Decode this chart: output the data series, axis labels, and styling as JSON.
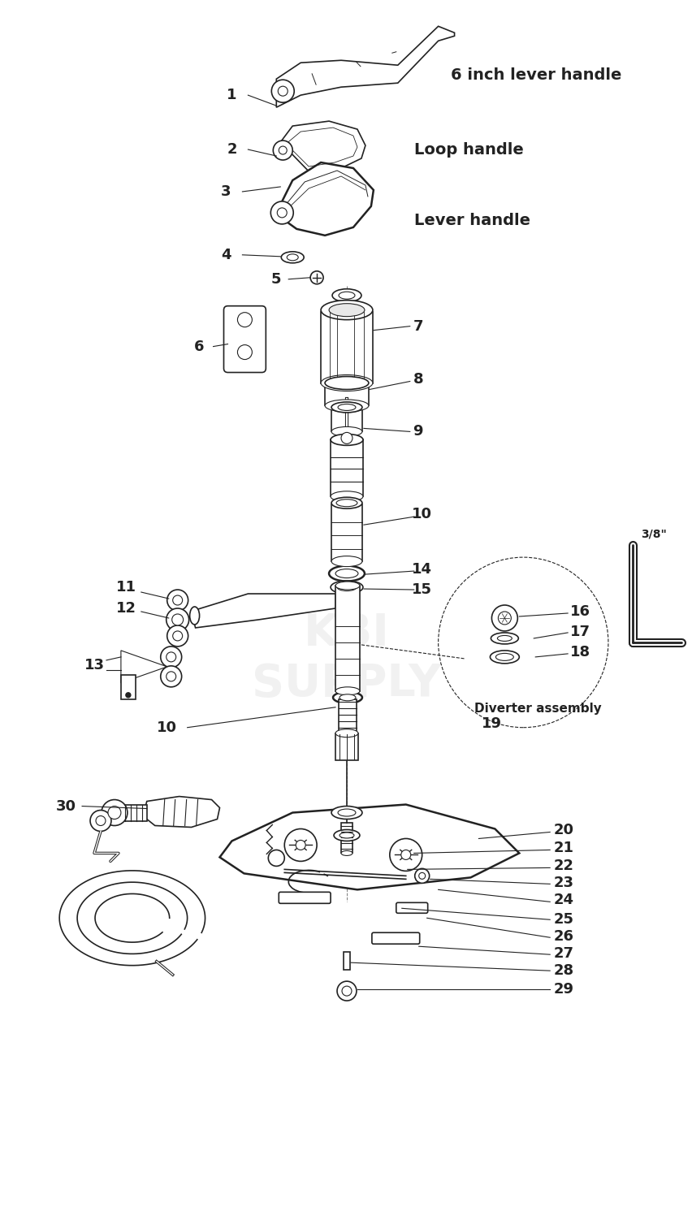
{
  "background_color": "#ffffff",
  "line_color": "#222222",
  "figsize": [
    8.53,
    14.91
  ],
  "dpi": 100,
  "parts_labels": {
    "1": "6 inch lever handle",
    "2": "Loop handle",
    "3": "Lever handle",
    "19": "Diverter assembly"
  }
}
